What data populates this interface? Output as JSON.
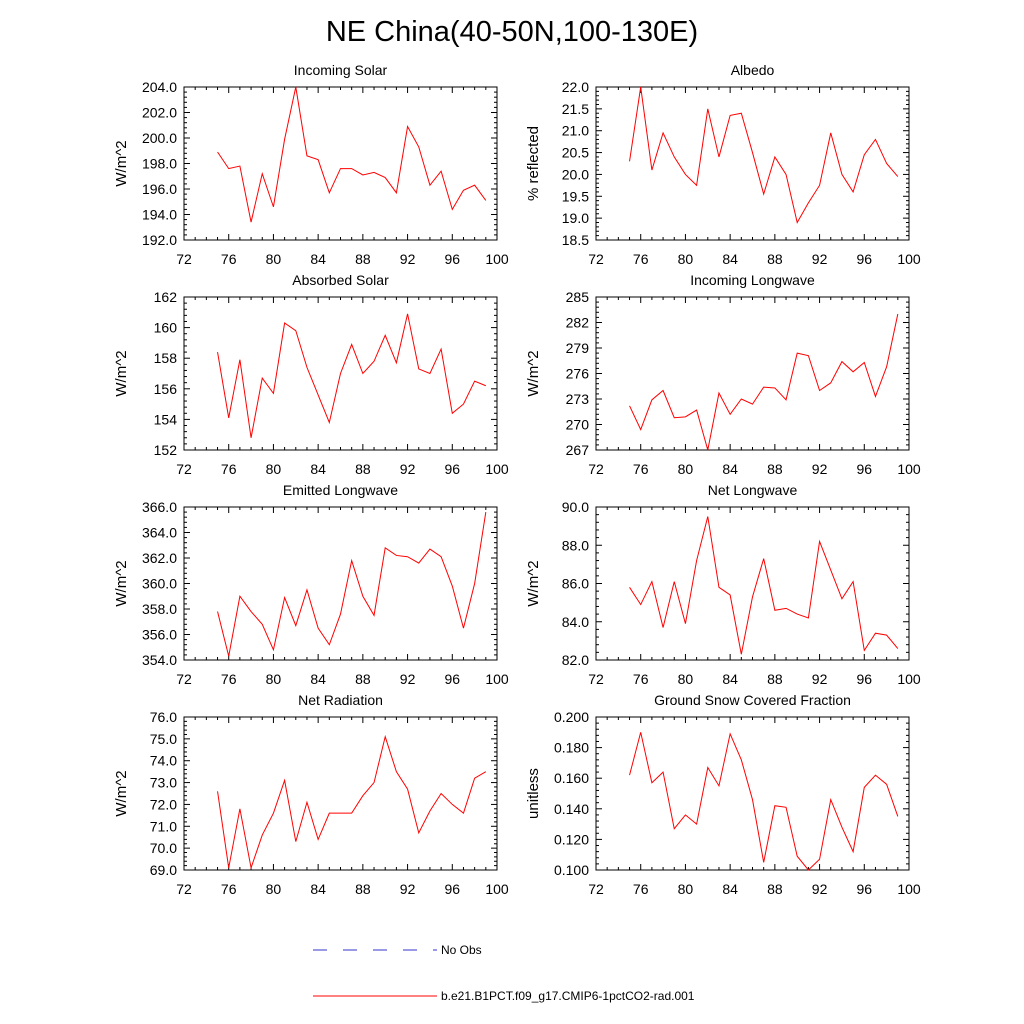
{
  "figure": {
    "title": "NE China(40-50N,100-130E)"
  },
  "legend": {
    "entries": [
      {
        "label": "No Obs",
        "color": "#3333cc",
        "style": "dashed"
      },
      {
        "label": "b.e21.B1PCT.f09_g17.CMIP6-1pctCO2-rad.001",
        "color": "#ff0000",
        "style": "solid"
      }
    ]
  },
  "chart_data": [
    {
      "type": "line",
      "title": "Incoming Solar",
      "ylabel": "W/m^2",
      "xlim": [
        72,
        100
      ],
      "ylim": [
        192,
        204
      ],
      "x_ticks": [
        "72",
        "76",
        "80",
        "84",
        "88",
        "92",
        "96",
        "100"
      ],
      "y_ticks": [
        "192.0",
        "194.0",
        "196.0",
        "198.0",
        "200.0",
        "202.0",
        "204.0"
      ],
      "x": [
        75,
        76,
        77,
        78,
        79,
        80,
        81,
        82,
        83,
        84,
        85,
        86,
        87,
        88,
        89,
        90,
        91,
        92,
        93,
        94,
        95,
        96,
        97,
        98,
        99
      ],
      "series": [
        {
          "color": "#ff0000",
          "values": [
            198.9,
            197.6,
            197.8,
            193.4,
            197.2,
            194.6,
            199.9,
            204.0,
            198.6,
            198.3,
            195.7,
            197.6,
            197.6,
            197.1,
            197.3,
            196.9,
            195.7,
            200.9,
            199.3,
            196.3,
            197.4,
            194.4,
            195.9,
            196.3,
            195.1
          ]
        }
      ]
    },
    {
      "type": "line",
      "title": "Albedo",
      "ylabel": "% reflected",
      "xlim": [
        72,
        100
      ],
      "ylim": [
        18.5,
        22.0
      ],
      "x_ticks": [
        "72",
        "76",
        "80",
        "84",
        "88",
        "92",
        "96",
        "100"
      ],
      "y_ticks": [
        "18.5",
        "19.0",
        "19.5",
        "20.0",
        "20.5",
        "21.0",
        "21.5",
        "22.0"
      ],
      "x": [
        75,
        76,
        77,
        78,
        79,
        80,
        81,
        82,
        83,
        84,
        85,
        86,
        87,
        88,
        89,
        90,
        91,
        92,
        93,
        94,
        95,
        96,
        97,
        98,
        99
      ],
      "series": [
        {
          "color": "#ff0000",
          "values": [
            20.3,
            22.0,
            20.1,
            20.95,
            20.4,
            20.0,
            19.75,
            21.5,
            20.4,
            21.35,
            21.4,
            20.5,
            19.55,
            20.4,
            20.0,
            18.9,
            19.35,
            19.75,
            20.95,
            20.0,
            19.6,
            20.45,
            20.8,
            20.25,
            19.95
          ]
        }
      ]
    },
    {
      "type": "line",
      "title": "Absorbed Solar",
      "ylabel": "W/m^2",
      "xlim": [
        72,
        100
      ],
      "ylim": [
        152,
        162
      ],
      "x_ticks": [
        "72",
        "76",
        "80",
        "84",
        "88",
        "92",
        "96",
        "100"
      ],
      "y_ticks": [
        "152",
        "154",
        "156",
        "158",
        "160",
        "162"
      ],
      "x": [
        75,
        76,
        77,
        78,
        79,
        80,
        81,
        82,
        83,
        84,
        85,
        86,
        87,
        88,
        89,
        90,
        91,
        92,
        93,
        94,
        95,
        96,
        97,
        98,
        99
      ],
      "series": [
        {
          "color": "#ff0000",
          "values": [
            158.4,
            154.1,
            157.9,
            152.8,
            156.7,
            155.7,
            160.3,
            159.8,
            157.4,
            155.6,
            153.8,
            157.0,
            158.9,
            157.0,
            157.8,
            159.5,
            157.7,
            160.9,
            157.3,
            157.0,
            158.6,
            154.4,
            155.0,
            156.5,
            156.2
          ]
        }
      ]
    },
    {
      "type": "line",
      "title": "Incoming Longwave",
      "ylabel": "W/m^2",
      "xlim": [
        72,
        100
      ],
      "ylim": [
        267,
        285
      ],
      "x_ticks": [
        "72",
        "76",
        "80",
        "84",
        "88",
        "92",
        "96",
        "100"
      ],
      "y_ticks": [
        "267",
        "270",
        "273",
        "276",
        "279",
        "282",
        "285"
      ],
      "x": [
        75,
        76,
        77,
        78,
        79,
        80,
        81,
        82,
        83,
        84,
        85,
        86,
        87,
        88,
        89,
        90,
        91,
        92,
        93,
        94,
        95,
        96,
        97,
        98,
        99
      ],
      "series": [
        {
          "color": "#ff0000",
          "values": [
            272.2,
            269.4,
            272.9,
            274.0,
            270.8,
            270.9,
            271.7,
            267.0,
            273.7,
            271.2,
            273.0,
            272.4,
            274.4,
            274.3,
            272.9,
            278.4,
            278.1,
            274.0,
            274.9,
            277.4,
            276.2,
            277.3,
            273.3,
            276.8,
            283.0
          ]
        }
      ]
    },
    {
      "type": "line",
      "title": "Emitted Longwave",
      "ylabel": "W/m^2",
      "xlim": [
        72,
        100
      ],
      "ylim": [
        354,
        366
      ],
      "x_ticks": [
        "72",
        "76",
        "80",
        "84",
        "88",
        "92",
        "96",
        "100"
      ],
      "y_ticks": [
        "354.0",
        "356.0",
        "358.0",
        "360.0",
        "362.0",
        "364.0",
        "366.0"
      ],
      "x": [
        75,
        76,
        77,
        78,
        79,
        80,
        81,
        82,
        83,
        84,
        85,
        86,
        87,
        88,
        89,
        90,
        91,
        92,
        93,
        94,
        95,
        96,
        97,
        98,
        99
      ],
      "series": [
        {
          "color": "#ff0000",
          "values": [
            357.8,
            354.3,
            359.0,
            357.8,
            356.8,
            354.8,
            358.9,
            356.7,
            359.5,
            356.5,
            355.2,
            357.6,
            361.8,
            359.0,
            357.5,
            362.8,
            362.2,
            362.1,
            361.6,
            362.7,
            362.1,
            359.8,
            356.5,
            360.0,
            365.6
          ]
        }
      ]
    },
    {
      "type": "line",
      "title": "Net Longwave",
      "ylabel": "W/m^2",
      "xlim": [
        72,
        100
      ],
      "ylim": [
        82,
        90
      ],
      "x_ticks": [
        "72",
        "76",
        "80",
        "84",
        "88",
        "92",
        "96",
        "100"
      ],
      "y_ticks": [
        "82.0",
        "84.0",
        "86.0",
        "88.0",
        "90.0"
      ],
      "x": [
        75,
        76,
        77,
        78,
        79,
        80,
        81,
        82,
        83,
        84,
        85,
        86,
        87,
        88,
        89,
        90,
        91,
        92,
        93,
        94,
        95,
        96,
        97,
        98,
        99
      ],
      "series": [
        {
          "color": "#ff0000",
          "values": [
            85.8,
            84.9,
            86.1,
            83.7,
            86.1,
            83.9,
            87.2,
            89.5,
            85.8,
            85.4,
            82.3,
            85.3,
            87.3,
            84.6,
            84.7,
            84.4,
            84.2,
            88.2,
            86.7,
            85.2,
            86.1,
            82.5,
            83.4,
            83.3,
            82.6
          ]
        }
      ]
    },
    {
      "type": "line",
      "title": "Net Radiation",
      "ylabel": "W/m^2",
      "xlim": [
        72,
        100
      ],
      "ylim": [
        69,
        76
      ],
      "x_ticks": [
        "72",
        "76",
        "80",
        "84",
        "88",
        "92",
        "96",
        "100"
      ],
      "y_ticks": [
        "69.0",
        "70.0",
        "71.0",
        "72.0",
        "73.0",
        "74.0",
        "75.0",
        "76.0"
      ],
      "x": [
        75,
        76,
        77,
        78,
        79,
        80,
        81,
        82,
        83,
        84,
        85,
        86,
        87,
        88,
        89,
        90,
        91,
        92,
        93,
        94,
        95,
        96,
        97,
        98,
        99
      ],
      "series": [
        {
          "color": "#ff0000",
          "values": [
            72.6,
            69.1,
            71.8,
            69.1,
            70.6,
            71.6,
            73.1,
            70.3,
            72.1,
            70.4,
            71.6,
            71.6,
            71.6,
            72.4,
            73.0,
            75.1,
            73.5,
            72.7,
            70.7,
            71.7,
            72.5,
            72.0,
            71.6,
            73.2,
            73.5
          ]
        }
      ]
    },
    {
      "type": "line",
      "title": "Ground Snow Covered Fraction",
      "ylabel": "unitless",
      "xlim": [
        72,
        100
      ],
      "ylim": [
        0.1,
        0.2
      ],
      "x_ticks": [
        "72",
        "76",
        "80",
        "84",
        "88",
        "92",
        "96",
        "100"
      ],
      "y_ticks": [
        "0.100",
        "0.120",
        "0.140",
        "0.160",
        "0.180",
        "0.200"
      ],
      "x": [
        75,
        76,
        77,
        78,
        79,
        80,
        81,
        82,
        83,
        84,
        85,
        86,
        87,
        88,
        89,
        90,
        91,
        92,
        93,
        94,
        95,
        96,
        97,
        98,
        99
      ],
      "series": [
        {
          "color": "#ff0000",
          "values": [
            0.162,
            0.19,
            0.157,
            0.164,
            0.127,
            0.136,
            0.13,
            0.167,
            0.155,
            0.189,
            0.172,
            0.146,
            0.105,
            0.142,
            0.141,
            0.109,
            0.1,
            0.107,
            0.146,
            0.128,
            0.112,
            0.154,
            0.162,
            0.156,
            0.135
          ]
        }
      ]
    }
  ]
}
